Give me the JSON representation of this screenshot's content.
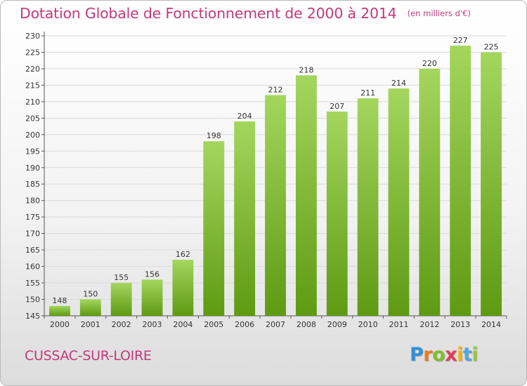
{
  "header": {
    "title": "Dotation Globale de Fonctionnement de 2000 à 2014",
    "unit": "(en milliers d'€)"
  },
  "footer": {
    "town": "CUSSAC-SUR-LOIRE",
    "logo": "Proxiti"
  },
  "colors": {
    "bar_light": "#a4d65e",
    "bar_dark": "#5e9a12",
    "title": "#c23a7a",
    "grid": "#d9d9d9"
  },
  "chart_data": {
    "type": "bar",
    "title": "Dotation Globale de Fonctionnement de 2000 à 2014",
    "subtitle": "(en milliers d'€)",
    "xlabel": "",
    "ylabel": "",
    "categories": [
      "2000",
      "2001",
      "2002",
      "2003",
      "2004",
      "2005",
      "2006",
      "2007",
      "2008",
      "2009",
      "2010",
      "2011",
      "2012",
      "2013",
      "2014"
    ],
    "values": [
      148,
      150,
      155,
      156,
      162,
      198,
      204,
      212,
      218,
      207,
      211,
      214,
      220,
      227,
      225
    ],
    "ylim": [
      145,
      230
    ],
    "yticks": [
      145,
      150,
      155,
      160,
      165,
      170,
      175,
      180,
      185,
      190,
      195,
      200,
      205,
      210,
      215,
      220,
      225,
      230
    ],
    "grid": true,
    "legend": "none"
  }
}
